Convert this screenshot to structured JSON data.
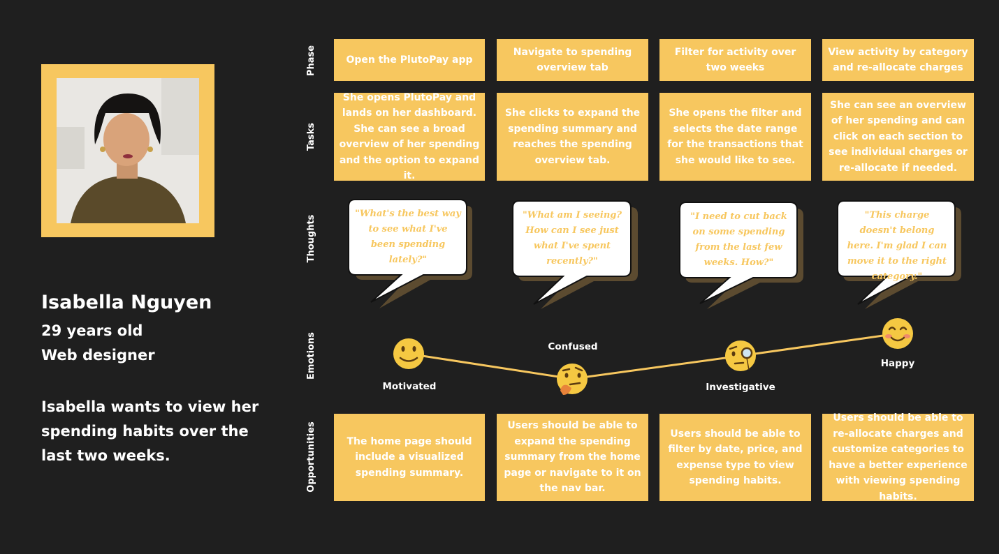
{
  "persona": {
    "name": "Isabella Nguyen",
    "age": "29 years old",
    "job": "Web designer",
    "goal": "Isabella wants to view her spending habits over the last two weeks."
  },
  "rows": {
    "phase": "Phase",
    "tasks": "Tasks",
    "thoughts": "Thoughts",
    "emotions": "Emotions",
    "opportunities": "Opportunities"
  },
  "phases": [
    "Open the PlutoPay app",
    "Navigate to spending overview tab",
    "Filter for activity over two weeks",
    "View activity by category and re-allocate charges"
  ],
  "tasks": [
    "She opens PlutoPay and lands on her dashboard. She can see a broad overview of her spending and the option to expand it.",
    "She clicks to expand the spending summary and reaches the spending overview tab.",
    "She opens the filter and selects the date range for the transactions that she would like to see.",
    "She can see an overview of her spending and can click on each section to see individual charges or re-allocate if needed."
  ],
  "thoughts": [
    "\"What's the best way to see what I've been spending lately?\"",
    "\"What am I seeing? How can I see just what I've spent recently?\"",
    "\"I need to cut back on some spending from the last few weeks. How?\"",
    "\"This charge doesn't belong here. I'm glad I can move it to the right category.\""
  ],
  "emotions": [
    {
      "label": "Motivated",
      "icon": "slight-smile-emoji-icon"
    },
    {
      "label": "Confused",
      "icon": "thinking-face-emoji-icon"
    },
    {
      "label": "Investigative",
      "icon": "face-with-monocle-emoji-icon"
    },
    {
      "label": "Happy",
      "icon": "smiling-face-emoji-icon"
    }
  ],
  "opportunities": [
    "The home page should include a visualized spending summary.",
    "Users should be able to expand the spending summary from the home page or navigate to it on the nav bar.",
    "Users should be able to filter by date, price, and expense type to view spending habits.",
    "Users should be able to re-allocate charges and customize categories to have a better experience with viewing spending habits."
  ],
  "colors": {
    "background": "#1f1f1f",
    "accent": "#f7c75f",
    "emoji": "#f5c842"
  }
}
